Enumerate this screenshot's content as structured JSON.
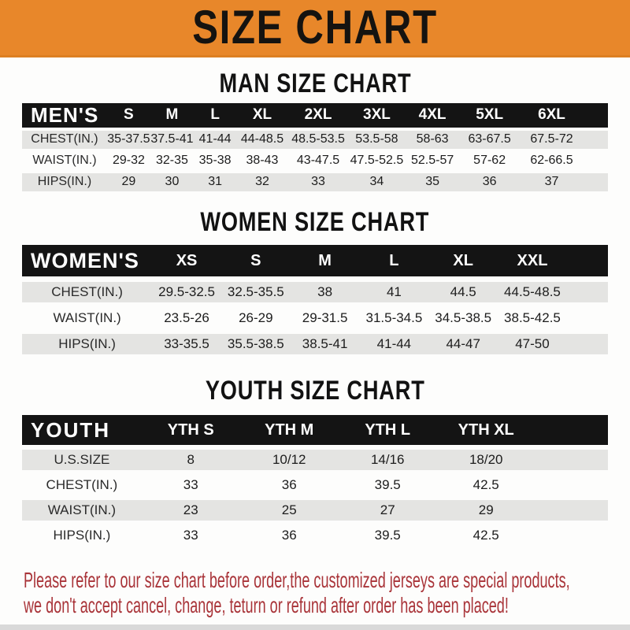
{
  "banner": {
    "title": "SIZE CHART"
  },
  "sections": [
    {
      "heading": "MAN SIZE CHART",
      "table": {
        "header_label": "MEN'S",
        "columns": [
          "S",
          "M",
          "L",
          "XL",
          "2XL",
          "3XL",
          "4XL",
          "5XL",
          "6XL"
        ],
        "rows": [
          {
            "label": "CHEST(IN.)",
            "values": [
              "35-37.5",
              "37.5-41",
              "41-44",
              "44-48.5",
              "48.5-53.5",
              "53.5-58",
              "58-63",
              "63-67.5",
              "67.5-72"
            ]
          },
          {
            "label": "WAIST(IN.)",
            "values": [
              "29-32",
              "32-35",
              "35-38",
              "38-43",
              "43-47.5",
              "47.5-52.5",
              "52.5-57",
              "57-62",
              "62-66.5"
            ]
          },
          {
            "label": "HIPS(IN.)",
            "values": [
              "29",
              "30",
              "31",
              "32",
              "33",
              "34",
              "35",
              "36",
              "37"
            ]
          }
        ]
      }
    },
    {
      "heading": "WOMEN SIZE CHART",
      "table": {
        "header_label": "WOMEN'S",
        "columns": [
          "XS",
          "S",
          "M",
          "L",
          "XL",
          "XXL"
        ],
        "rows": [
          {
            "label": "CHEST(IN.)",
            "values": [
              "29.5-32.5",
              "32.5-35.5",
              "38",
              "41",
              "44.5",
              "44.5-48.5"
            ]
          },
          {
            "label": "WAIST(IN.)",
            "values": [
              "23.5-26",
              "26-29",
              "29-31.5",
              "31.5-34.5",
              "34.5-38.5",
              "38.5-42.5"
            ]
          },
          {
            "label": "HIPS(IN.)",
            "values": [
              "33-35.5",
              "35.5-38.5",
              "38.5-41",
              "41-44",
              "44-47",
              "47-50"
            ]
          }
        ]
      }
    },
    {
      "heading": "YOUTH SIZE CHART",
      "table": {
        "header_label": "YOUTH",
        "columns": [
          "YTH S",
          "YTH M",
          "YTH L",
          "YTH XL"
        ],
        "rows": [
          {
            "label": "U.S.SIZE",
            "values": [
              "8",
              "10/12",
              "14/16",
              "18/20"
            ]
          },
          {
            "label": "CHEST(IN.)",
            "values": [
              "33",
              "36",
              "39.5",
              "42.5"
            ]
          },
          {
            "label": "WAIST(IN.)",
            "values": [
              "23",
              "25",
              "27",
              "29"
            ]
          },
          {
            "label": "HIPS(IN.)",
            "values": [
              "33",
              "36",
              "39.5",
              "42.5"
            ]
          }
        ]
      }
    }
  ],
  "footer": {
    "line1": "Please refer to our size chart before order,the customized jerseys are special products,",
    "line2": "we don't accept cancel, change, teturn or refund after order has been placed!"
  },
  "colors": {
    "banner_orange": "#E8872A",
    "bar_black": "#141414",
    "row_gray": "#E4E4E2",
    "note_red": "#A93439"
  }
}
